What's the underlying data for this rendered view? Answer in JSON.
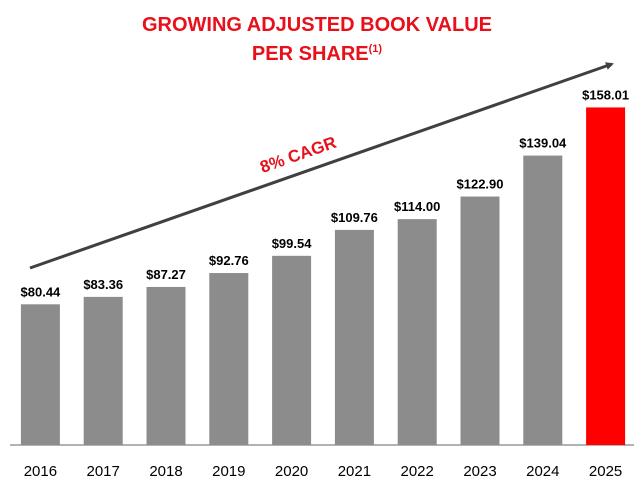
{
  "chart_data": {
    "type": "bar",
    "title": [
      "GROWING ADJUSTED BOOK VALUE",
      "PER SHARE"
    ],
    "title_note": "(1)",
    "annotation": "8% CAGR",
    "categories": [
      "2016",
      "2017",
      "2018",
      "2019",
      "2020",
      "2021",
      "2022",
      "2023",
      "2024",
      "2025"
    ],
    "values": [
      80.44,
      83.36,
      87.27,
      92.76,
      99.54,
      109.76,
      114.0,
      122.9,
      139.04,
      158.01
    ],
    "value_labels": [
      "$80.44",
      "$83.36",
      "$87.27",
      "$92.76",
      "$99.54",
      "$109.76",
      "$114.00",
      "$122.90",
      "$139.04",
      "$158.01"
    ],
    "colors": [
      "#8c8c8c",
      "#8c8c8c",
      "#8c8c8c",
      "#8c8c8c",
      "#8c8c8c",
      "#8c8c8c",
      "#8c8c8c",
      "#8c8c8c",
      "#8c8c8c",
      "#ff0000"
    ],
    "ylim": [
      25,
      170
    ]
  }
}
